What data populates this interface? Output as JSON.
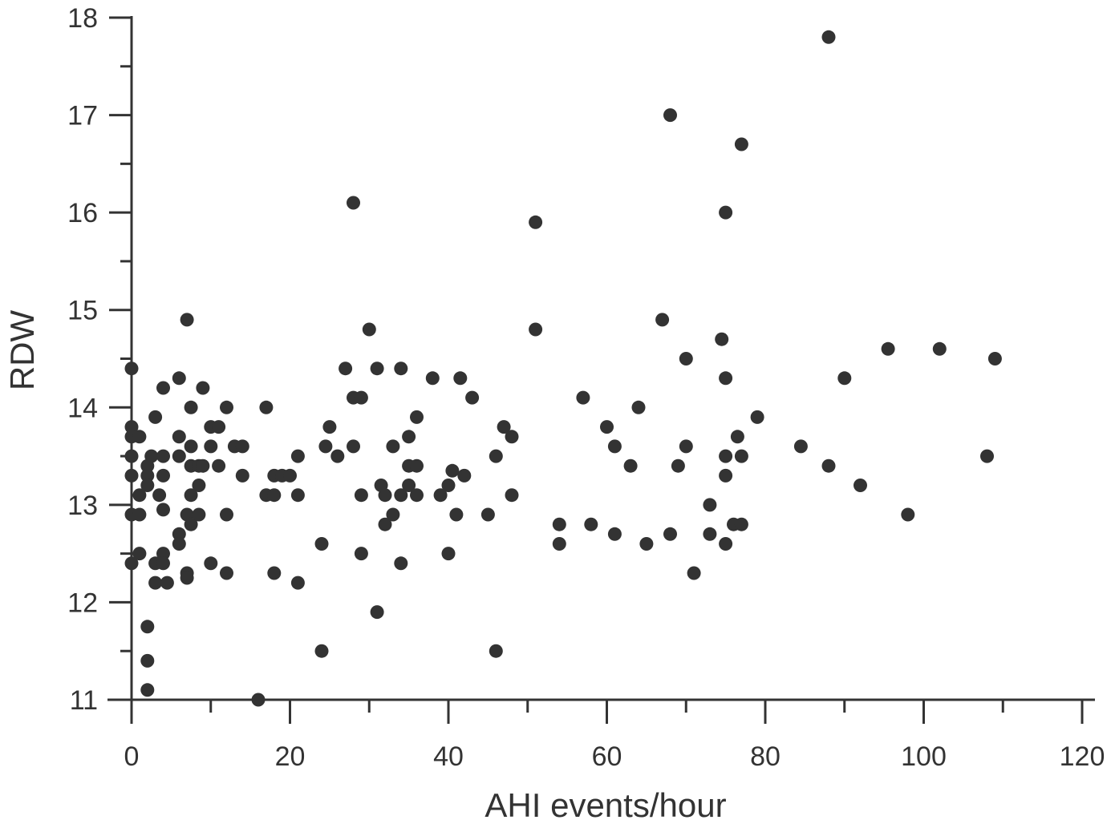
{
  "chart_data": {
    "type": "scatter",
    "title": "",
    "xlabel": "AHI events/hour",
    "ylabel": "RDW",
    "xlim": [
      0,
      120
    ],
    "ylim": [
      11,
      18
    ],
    "x_ticks": [
      "0",
      "20",
      "40",
      "60",
      "80",
      "100",
      "120"
    ],
    "y_ticks": [
      "11",
      "12",
      "13",
      "14",
      "15",
      "16",
      "17",
      "18"
    ],
    "grid": false,
    "legend": "none",
    "marker_color": "#333333",
    "series": [
      {
        "points": [
          [
            0,
            14.4
          ],
          [
            0,
            13.8
          ],
          [
            0,
            13.7
          ],
          [
            0,
            13.5
          ],
          [
            0,
            13.3
          ],
          [
            0,
            12.9
          ],
          [
            0,
            12.4
          ],
          [
            1,
            13.7
          ],
          [
            1,
            13.1
          ],
          [
            1,
            12.9
          ],
          [
            1,
            12.5
          ],
          [
            2,
            13.4
          ],
          [
            2,
            13.3
          ],
          [
            2,
            13.2
          ],
          [
            2,
            11.75
          ],
          [
            2,
            11.4
          ],
          [
            2,
            11.1
          ],
          [
            2.5,
            13.5
          ],
          [
            3,
            13.9
          ],
          [
            3,
            12.4
          ],
          [
            3,
            12.2
          ],
          [
            3.5,
            13.1
          ],
          [
            4,
            14.2
          ],
          [
            4,
            13.5
          ],
          [
            4,
            13.3
          ],
          [
            4,
            12.95
          ],
          [
            4,
            12.5
          ],
          [
            4,
            12.4
          ],
          [
            4.5,
            12.2
          ],
          [
            6,
            14.3
          ],
          [
            6,
            13.7
          ],
          [
            6,
            13.5
          ],
          [
            6,
            12.7
          ],
          [
            6,
            12.6
          ],
          [
            7,
            14.9
          ],
          [
            7,
            12.9
          ],
          [
            7,
            12.3
          ],
          [
            7,
            12.25
          ],
          [
            7.5,
            14.0
          ],
          [
            7.5,
            13.6
          ],
          [
            7.5,
            13.4
          ],
          [
            7.5,
            13.1
          ],
          [
            7.5,
            12.8
          ],
          [
            8.5,
            13.4
          ],
          [
            8.5,
            13.2
          ],
          [
            8.5,
            12.9
          ],
          [
            9,
            14.2
          ],
          [
            9,
            13.4
          ],
          [
            10,
            13.8
          ],
          [
            10,
            13.6
          ],
          [
            10,
            12.4
          ],
          [
            11,
            13.8
          ],
          [
            11,
            13.4
          ],
          [
            12,
            14.0
          ],
          [
            12,
            12.9
          ],
          [
            12,
            12.3
          ],
          [
            13,
            13.6
          ],
          [
            14,
            13.6
          ],
          [
            14,
            13.3
          ],
          [
            16,
            11.0
          ],
          [
            17,
            14.0
          ],
          [
            17,
            13.1
          ],
          [
            18,
            13.3
          ],
          [
            18,
            13.1
          ],
          [
            18,
            12.3
          ],
          [
            19,
            13.3
          ],
          [
            20,
            13.3
          ],
          [
            21,
            13.5
          ],
          [
            21,
            13.1
          ],
          [
            21,
            12.2
          ],
          [
            24,
            12.6
          ],
          [
            24,
            11.5
          ],
          [
            24.5,
            13.6
          ],
          [
            25,
            13.8
          ],
          [
            26,
            13.5
          ],
          [
            27,
            14.4
          ],
          [
            28,
            16.1
          ],
          [
            28,
            14.1
          ],
          [
            28,
            13.6
          ],
          [
            29,
            14.1
          ],
          [
            29,
            13.1
          ],
          [
            29,
            12.5
          ],
          [
            30,
            14.8
          ],
          [
            31,
            14.4
          ],
          [
            31,
            11.9
          ],
          [
            31.5,
            13.2
          ],
          [
            32,
            13.1
          ],
          [
            32,
            12.8
          ],
          [
            33,
            13.6
          ],
          [
            33,
            12.9
          ],
          [
            34,
            14.4
          ],
          [
            34,
            13.1
          ],
          [
            34,
            12.4
          ],
          [
            35,
            13.7
          ],
          [
            35,
            13.4
          ],
          [
            35,
            13.2
          ],
          [
            36,
            13.9
          ],
          [
            36,
            13.4
          ],
          [
            36,
            13.1
          ],
          [
            38,
            14.3
          ],
          [
            39,
            13.1
          ],
          [
            40,
            13.2
          ],
          [
            40,
            12.5
          ],
          [
            40.5,
            13.35
          ],
          [
            41,
            12.9
          ],
          [
            41.5,
            14.3
          ],
          [
            42,
            13.3
          ],
          [
            43,
            14.1
          ],
          [
            45,
            12.9
          ],
          [
            46,
            13.5
          ],
          [
            46,
            11.5
          ],
          [
            47,
            13.8
          ],
          [
            48,
            13.7
          ],
          [
            48,
            13.1
          ],
          [
            51,
            15.9
          ],
          [
            51,
            14.8
          ],
          [
            54,
            12.8
          ],
          [
            54,
            12.6
          ],
          [
            57,
            14.1
          ],
          [
            58,
            12.8
          ],
          [
            60,
            13.8
          ],
          [
            61,
            13.6
          ],
          [
            61,
            12.7
          ],
          [
            63,
            13.4
          ],
          [
            64,
            14.0
          ],
          [
            65,
            12.6
          ],
          [
            67,
            14.9
          ],
          [
            68,
            17.0
          ],
          [
            68,
            12.7
          ],
          [
            69,
            13.4
          ],
          [
            70,
            14.5
          ],
          [
            70,
            13.6
          ],
          [
            71,
            12.3
          ],
          [
            73,
            13.0
          ],
          [
            73,
            12.7
          ],
          [
            74.5,
            14.7
          ],
          [
            75,
            16.0
          ],
          [
            75,
            14.3
          ],
          [
            75,
            13.5
          ],
          [
            75,
            13.3
          ],
          [
            75,
            12.6
          ],
          [
            76,
            12.8
          ],
          [
            76.5,
            13.7
          ],
          [
            77,
            16.7
          ],
          [
            77,
            13.5
          ],
          [
            77,
            12.8
          ],
          [
            79,
            13.9
          ],
          [
            84.5,
            13.6
          ],
          [
            88,
            17.8
          ],
          [
            88,
            13.4
          ],
          [
            90,
            14.3
          ],
          [
            92,
            13.2
          ],
          [
            95.5,
            14.6
          ],
          [
            98,
            12.9
          ],
          [
            102,
            14.6
          ],
          [
            108,
            13.5
          ],
          [
            109,
            14.5
          ]
        ]
      }
    ]
  }
}
